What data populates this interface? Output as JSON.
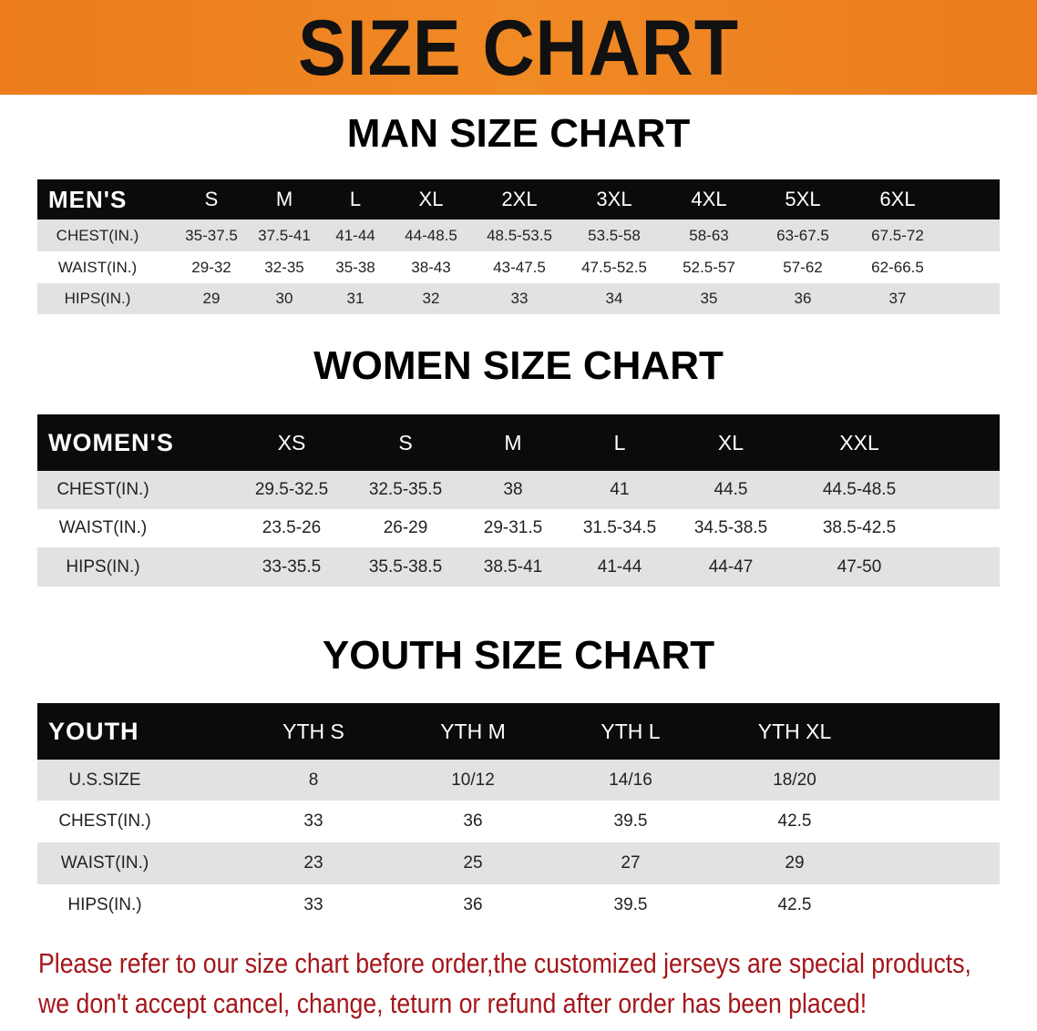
{
  "banner": {
    "title": "SIZE CHART",
    "color": "#ec7c1c"
  },
  "men": {
    "title": "MAN SIZE CHART",
    "header": [
      "MEN'S",
      "S",
      "M",
      "L",
      "XL",
      "2XL",
      "3XL",
      "4XL",
      "5XL",
      "6XL"
    ],
    "rows": [
      [
        "CHEST(IN.)",
        "35-37.5",
        "37.5-41",
        "41-44",
        "44-48.5",
        "48.5-53.5",
        "53.5-58",
        "58-63",
        "63-67.5",
        "67.5-72"
      ],
      [
        "WAIST(IN.)",
        "29-32",
        "32-35",
        "35-38",
        "38-43",
        "43-47.5",
        "47.5-52.5",
        "52.5-57",
        "57-62",
        "62-66.5"
      ],
      [
        "HIPS(IN.)",
        "29",
        "30",
        "31",
        "32",
        "33",
        "34",
        "35",
        "36",
        "37"
      ]
    ]
  },
  "women": {
    "title": "WOMEN SIZE CHART",
    "header": [
      "WOMEN'S",
      "XS",
      "S",
      "M",
      "L",
      "XL",
      "XXL"
    ],
    "rows": [
      [
        "CHEST(IN.)",
        "29.5-32.5",
        "32.5-35.5",
        "38",
        "41",
        "44.5",
        "44.5-48.5"
      ],
      [
        "WAIST(IN.)",
        "23.5-26",
        "26-29",
        "29-31.5",
        "31.5-34.5",
        "34.5-38.5",
        "38.5-42.5"
      ],
      [
        "HIPS(IN.)",
        "33-35.5",
        "35.5-38.5",
        "38.5-41",
        "41-44",
        "44-47",
        "47-50"
      ]
    ]
  },
  "youth": {
    "title": "YOUTH SIZE CHART",
    "header": [
      "YOUTH",
      "YTH S",
      "YTH M",
      "YTH L",
      "YTH XL"
    ],
    "rows": [
      [
        "U.S.SIZE",
        "8",
        "10/12",
        "14/16",
        "18/20"
      ],
      [
        "CHEST(IN.)",
        "33",
        "36",
        "39.5",
        "42.5"
      ],
      [
        "WAIST(IN.)",
        "23",
        "25",
        "27",
        "29"
      ],
      [
        "HIPS(IN.)",
        "33",
        "36",
        "39.5",
        "42.5"
      ]
    ]
  },
  "notice": {
    "line1": "Please refer to our size chart before order,the customized jerseys are special products,",
    "line2": "we don't accept cancel, change, teturn or refund after order has been placed!",
    "color": "#a4161a"
  }
}
